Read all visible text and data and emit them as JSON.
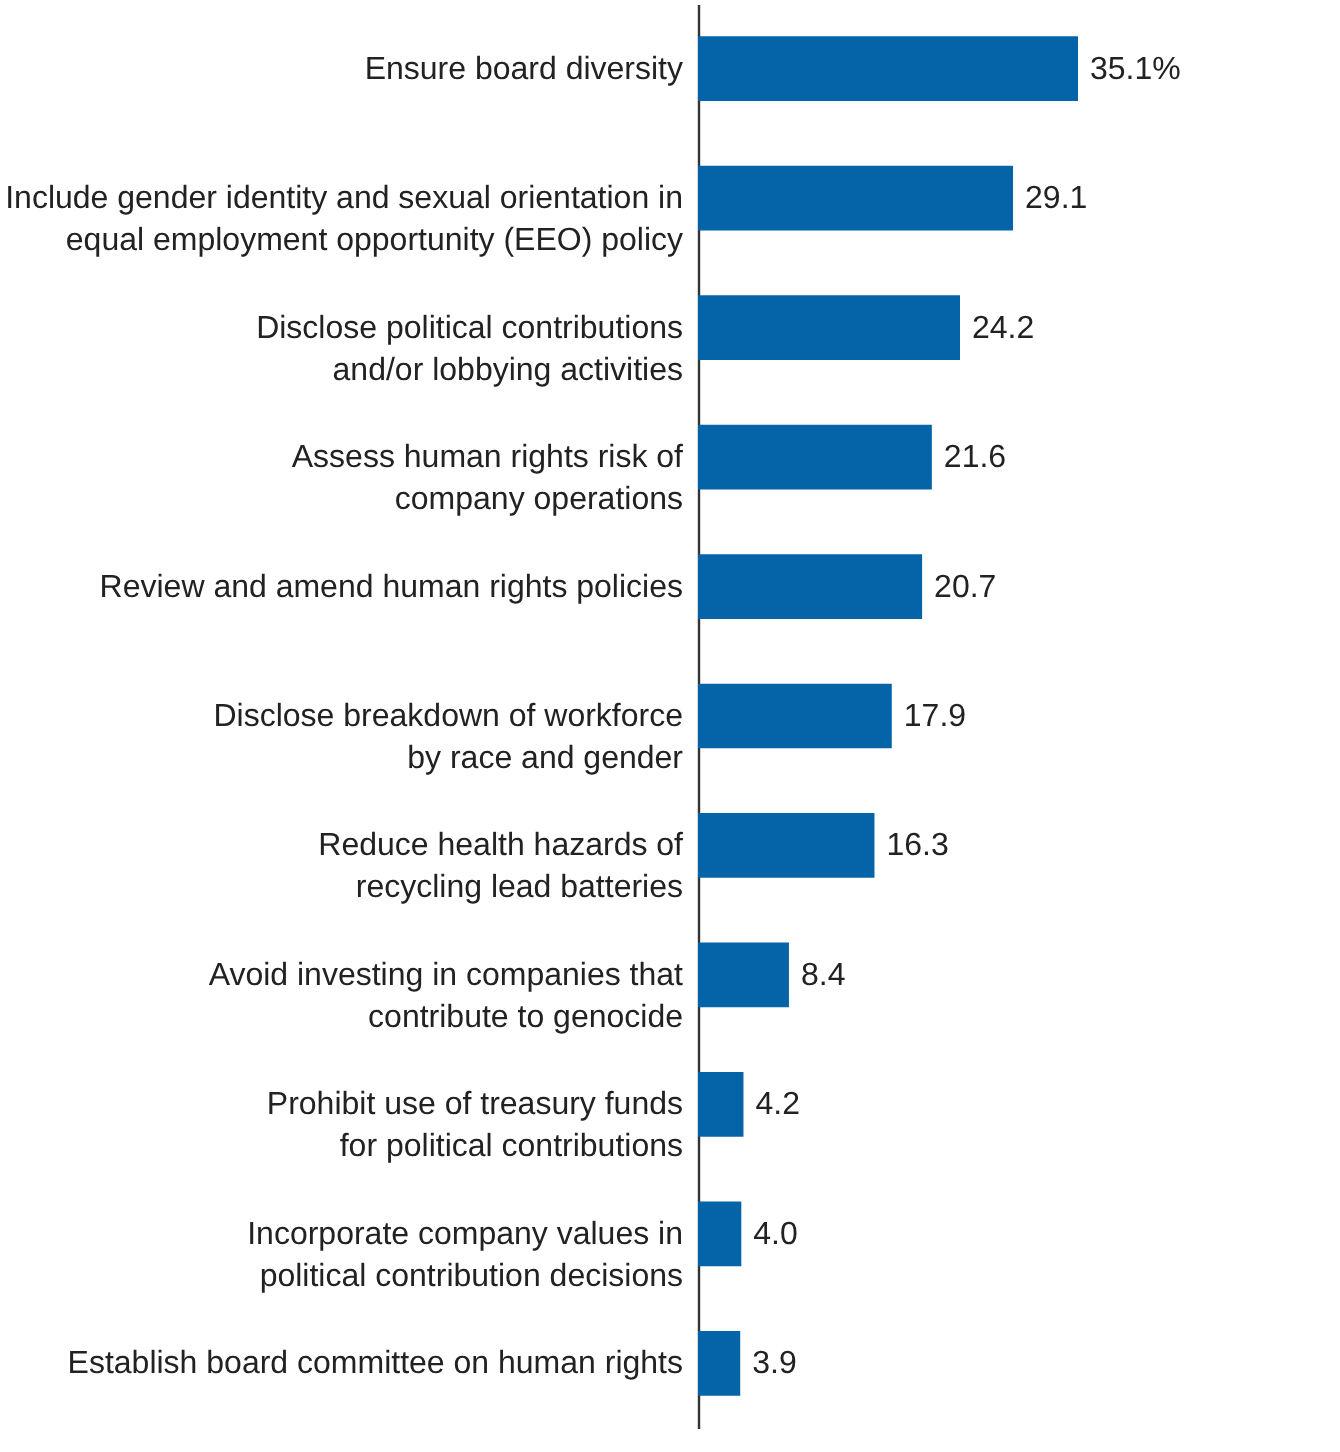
{
  "chart_data": {
    "type": "bar",
    "orientation": "horizontal",
    "categories": [
      "Ensure board diversity",
      "Include gender identity and sexual orientation in\nequal employment opportunity (EEO) policy",
      "Disclose political contributions\nand/or lobbying activities",
      "Assess human rights risk of\ncompany operations",
      "Review and amend human rights policies",
      "Disclose breakdown of workforce\nby race and gender",
      "Reduce health hazards of\nrecycling lead batteries",
      "Avoid investing in companies that\ncontribute to genocide",
      "Prohibit use of treasury funds\nfor political contributions",
      "Incorporate company values in\npolitical contribution decisions",
      "Establish board committee on human rights"
    ],
    "values": [
      35.1,
      29.1,
      24.2,
      21.6,
      20.7,
      17.9,
      16.3,
      8.4,
      4.2,
      4.0,
      3.9
    ],
    "value_labels": [
      "35.1%",
      "29.1",
      "24.2",
      "21.6",
      "20.7",
      "17.9",
      "16.3",
      "8.4",
      "4.2",
      "4.0",
      "3.9"
    ],
    "color": "#0563a8"
  }
}
